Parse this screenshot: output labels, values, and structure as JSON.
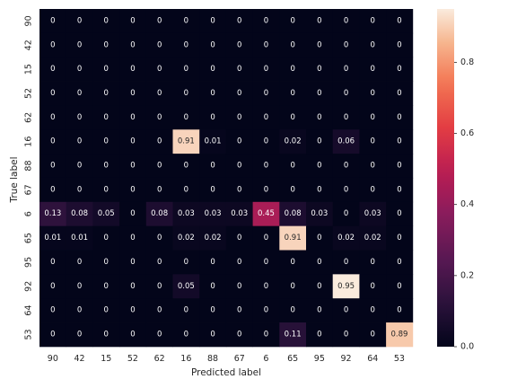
{
  "chart_data": {
    "type": "heatmap",
    "title": "",
    "xlabel": "Predicted label",
    "ylabel": "True label",
    "x_categories": [
      "90",
      "42",
      "15",
      "52",
      "62",
      "16",
      "88",
      "67",
      "6",
      "65",
      "95",
      "92",
      "64",
      "53"
    ],
    "y_categories": [
      "90",
      "42",
      "15",
      "52",
      "62",
      "16",
      "88",
      "67",
      "6",
      "65",
      "95",
      "92",
      "64",
      "53"
    ],
    "values": [
      [
        0,
        0,
        0,
        0,
        0,
        0,
        0,
        0,
        0,
        0,
        0,
        0,
        0,
        0
      ],
      [
        0,
        0,
        0,
        0,
        0,
        0,
        0,
        0,
        0,
        0,
        0,
        0,
        0,
        0
      ],
      [
        0,
        0,
        0,
        0,
        0,
        0,
        0,
        0,
        0,
        0,
        0,
        0,
        0,
        0
      ],
      [
        0,
        0,
        0,
        0,
        0,
        0,
        0,
        0,
        0,
        0,
        0,
        0,
        0,
        0
      ],
      [
        0,
        0,
        0,
        0,
        0,
        0,
        0,
        0,
        0,
        0,
        0,
        0,
        0,
        0
      ],
      [
        0,
        0,
        0,
        0,
        0,
        0.91,
        0.01,
        0,
        0,
        0.02,
        0,
        0.06,
        0,
        0
      ],
      [
        0,
        0,
        0,
        0,
        0,
        0,
        0,
        0,
        0,
        0,
        0,
        0,
        0,
        0
      ],
      [
        0,
        0,
        0,
        0,
        0,
        0,
        0,
        0,
        0,
        0,
        0,
        0,
        0,
        0
      ],
      [
        0.13,
        0.08,
        0.05,
        0,
        0.08,
        0.03,
        0.03,
        0.03,
        0.45,
        0.08,
        0.03,
        0,
        0.03,
        0
      ],
      [
        0.01,
        0.01,
        0,
        0,
        0,
        0.02,
        0.02,
        0,
        0,
        0.91,
        0,
        0.02,
        0.02,
        0
      ],
      [
        0,
        0,
        0,
        0,
        0,
        0,
        0,
        0,
        0,
        0,
        0,
        0,
        0,
        0
      ],
      [
        0,
        0,
        0,
        0,
        0,
        0.05,
        0,
        0,
        0,
        0,
        0,
        0.95,
        0,
        0
      ],
      [
        0,
        0,
        0,
        0,
        0,
        0,
        0,
        0,
        0,
        0,
        0,
        0,
        0,
        0
      ],
      [
        0,
        0,
        0,
        0,
        0,
        0,
        0,
        0,
        0,
        0.11,
        0,
        0,
        0,
        0.89
      ]
    ],
    "colorbar": {
      "range": [
        0,
        0.95
      ],
      "ticks": [
        0.0,
        0.2,
        0.4,
        0.6,
        0.8
      ],
      "tick_labels": [
        "0.0",
        "0.2",
        "0.4",
        "0.6",
        "0.8"
      ]
    },
    "colormap": "rocket",
    "grid": false,
    "legend": "colorbar-right"
  }
}
